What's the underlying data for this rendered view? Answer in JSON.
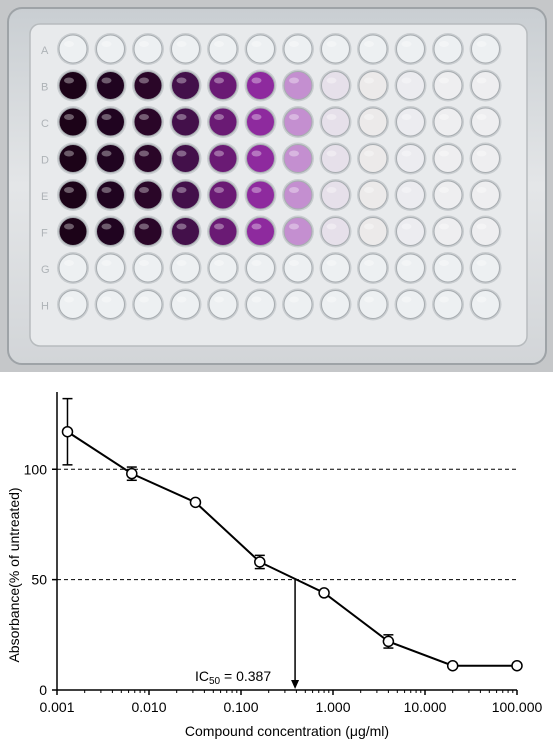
{
  "plate": {
    "rows": 8,
    "cols": 12,
    "row_letters": [
      "A",
      "B",
      "C",
      "D",
      "E",
      "F",
      "G",
      "H"
    ],
    "filled_rows": [
      1,
      2,
      3,
      4,
      5
    ],
    "well_colors": [
      "#1c0318",
      "#200420",
      "#2a0628",
      "#43104a",
      "#6a1a74",
      "#8e2a9e",
      "#c48fd0",
      "#e6e0ea",
      "#eceaea",
      "#ececf0",
      "#eeeef0",
      "#eeeef0"
    ],
    "empty_color": "#edf0f2",
    "plate_color": "#dfe2e4"
  },
  "chart_data": {
    "type": "line",
    "x": [
      0.0013,
      0.0065,
      0.032,
      0.16,
      0.8,
      4,
      20,
      100
    ],
    "y": [
      117,
      98,
      85,
      58,
      44,
      22,
      11,
      11
    ],
    "error": [
      15,
      3,
      0,
      3,
      0,
      3,
      0,
      0
    ],
    "xscale": "log",
    "xlim": [
      0.001,
      100
    ],
    "ylim": [
      0,
      135
    ],
    "xticks": [
      "0.001",
      "0.010",
      "0.100",
      "1.000",
      "10.000",
      "100.000"
    ],
    "xtick_values": [
      0.001,
      0.01,
      0.1,
      1,
      10,
      100
    ],
    "yticks": [
      "0",
      "50",
      "100"
    ],
    "ytick_values": [
      0,
      50,
      100
    ],
    "reference_lines": [
      100,
      50
    ],
    "xlabel": "Compound concentration (μg/ml)",
    "ylabel": "Absorbance(% of untreated)",
    "ic50": {
      "value": 0.387,
      "prefix": "IC",
      "subscript": "50",
      "suffix": " = 0.387"
    }
  }
}
